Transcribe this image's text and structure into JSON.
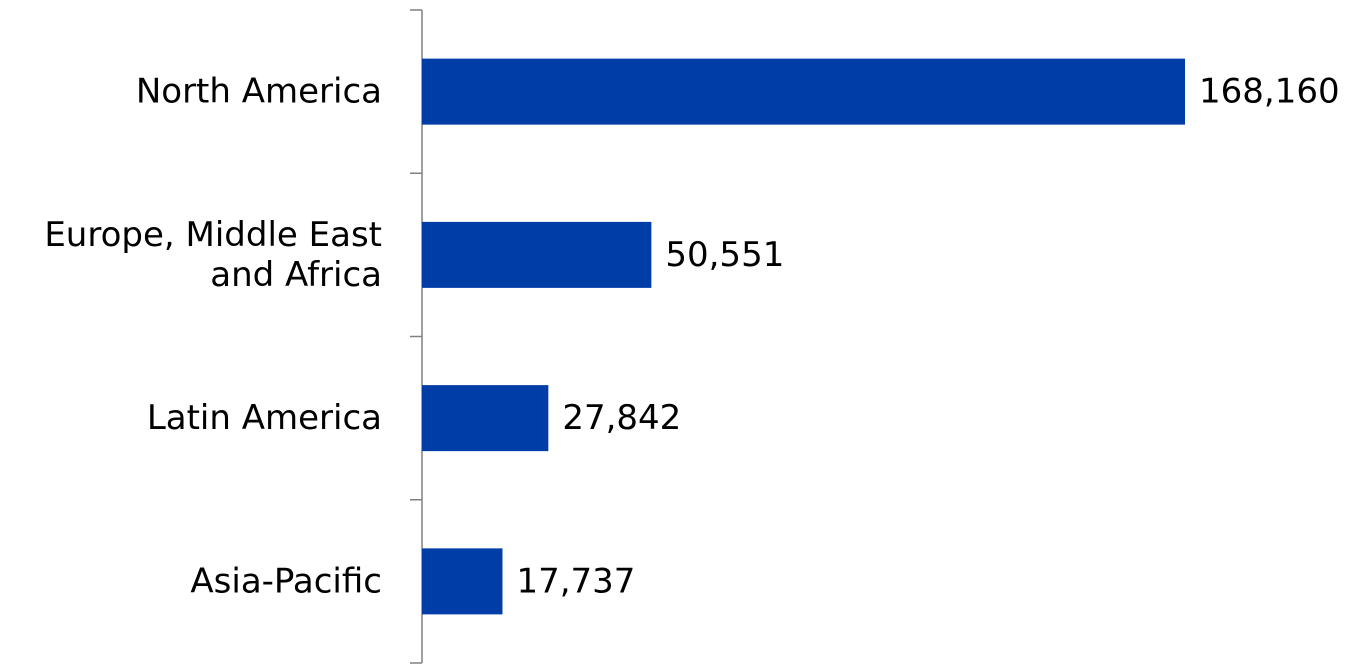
{
  "chart_data": {
    "type": "bar",
    "orientation": "horizontal",
    "categories": [
      "North America",
      "Europe, Middle East and Africa",
      "Latin America",
      "Asia-Pacific"
    ],
    "category_lines": [
      [
        "North America"
      ],
      [
        "Europe, Middle East",
        "and Africa"
      ],
      [
        "Latin America"
      ],
      [
        "Asia-Pacific"
      ]
    ],
    "values": [
      168160,
      50551,
      27842,
      17737
    ],
    "value_labels": [
      "168,160",
      "50,551",
      "27,842",
      "17,737"
    ],
    "title": "",
    "xlabel": "",
    "ylabel": "",
    "xlim": [
      0,
      168160
    ],
    "grid": false,
    "legend": "none",
    "bar_color": "#003DA6",
    "axis_color": "#808080"
  }
}
